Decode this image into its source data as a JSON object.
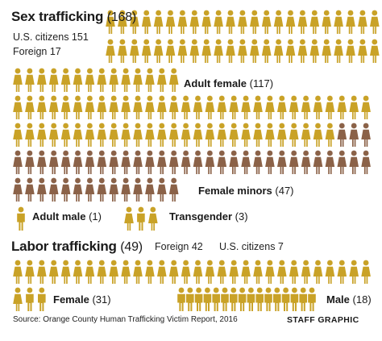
{
  "palette": {
    "gold": "#C9A227",
    "brown": "#8B6248"
  },
  "sections": {
    "sex": {
      "title": "Sex trafficking",
      "count": "(168)",
      "sub1": "U.S. citizens 151",
      "sub2": "Foreign 17"
    },
    "labor": {
      "title": "Labor trafficking",
      "count": "(49)",
      "foreign": "Foreign 42",
      "us": "U.S. citizens 7"
    }
  },
  "labels": {
    "adult_female": {
      "name": "Adult female",
      "count": "(117)"
    },
    "female_minors": {
      "name": "Female minors",
      "count": "(47)"
    },
    "adult_male": {
      "name": "Adult male",
      "count": "(1)"
    },
    "transgender": {
      "name": "Transgender",
      "count": "(3)"
    },
    "labor_female": {
      "name": "Female",
      "count": "(31)"
    },
    "labor_male": {
      "name": "Male",
      "count": "(18)"
    }
  },
  "source": "Source: Orange County Human Trafficking Victim Report, 2016",
  "credit": "STAFF GRAPHIC",
  "chart_data": {
    "type": "pictograph",
    "unit": "1 icon = 1 victim",
    "series": [
      {
        "group": "Sex trafficking",
        "category": "Adult female",
        "value": 117,
        "color": "gold"
      },
      {
        "group": "Sex trafficking",
        "category": "Female minors",
        "value": 47,
        "color": "brown"
      },
      {
        "group": "Sex trafficking",
        "category": "Adult male",
        "value": 1,
        "color": "gold"
      },
      {
        "group": "Sex trafficking",
        "category": "Transgender",
        "value": 3,
        "color": "gold"
      },
      {
        "group": "Labor trafficking",
        "category": "Female",
        "value": 31,
        "color": "gold"
      },
      {
        "group": "Labor trafficking",
        "category": "Male",
        "value": 18,
        "color": "gold"
      }
    ],
    "totals": {
      "Sex trafficking": 168,
      "Labor trafficking": 49
    },
    "breakdowns": {
      "Sex trafficking": {
        "U.S. citizens": 151,
        "Foreign": 17
      },
      "Labor trafficking": {
        "Foreign": 42,
        "U.S. citizens": 7
      }
    }
  }
}
